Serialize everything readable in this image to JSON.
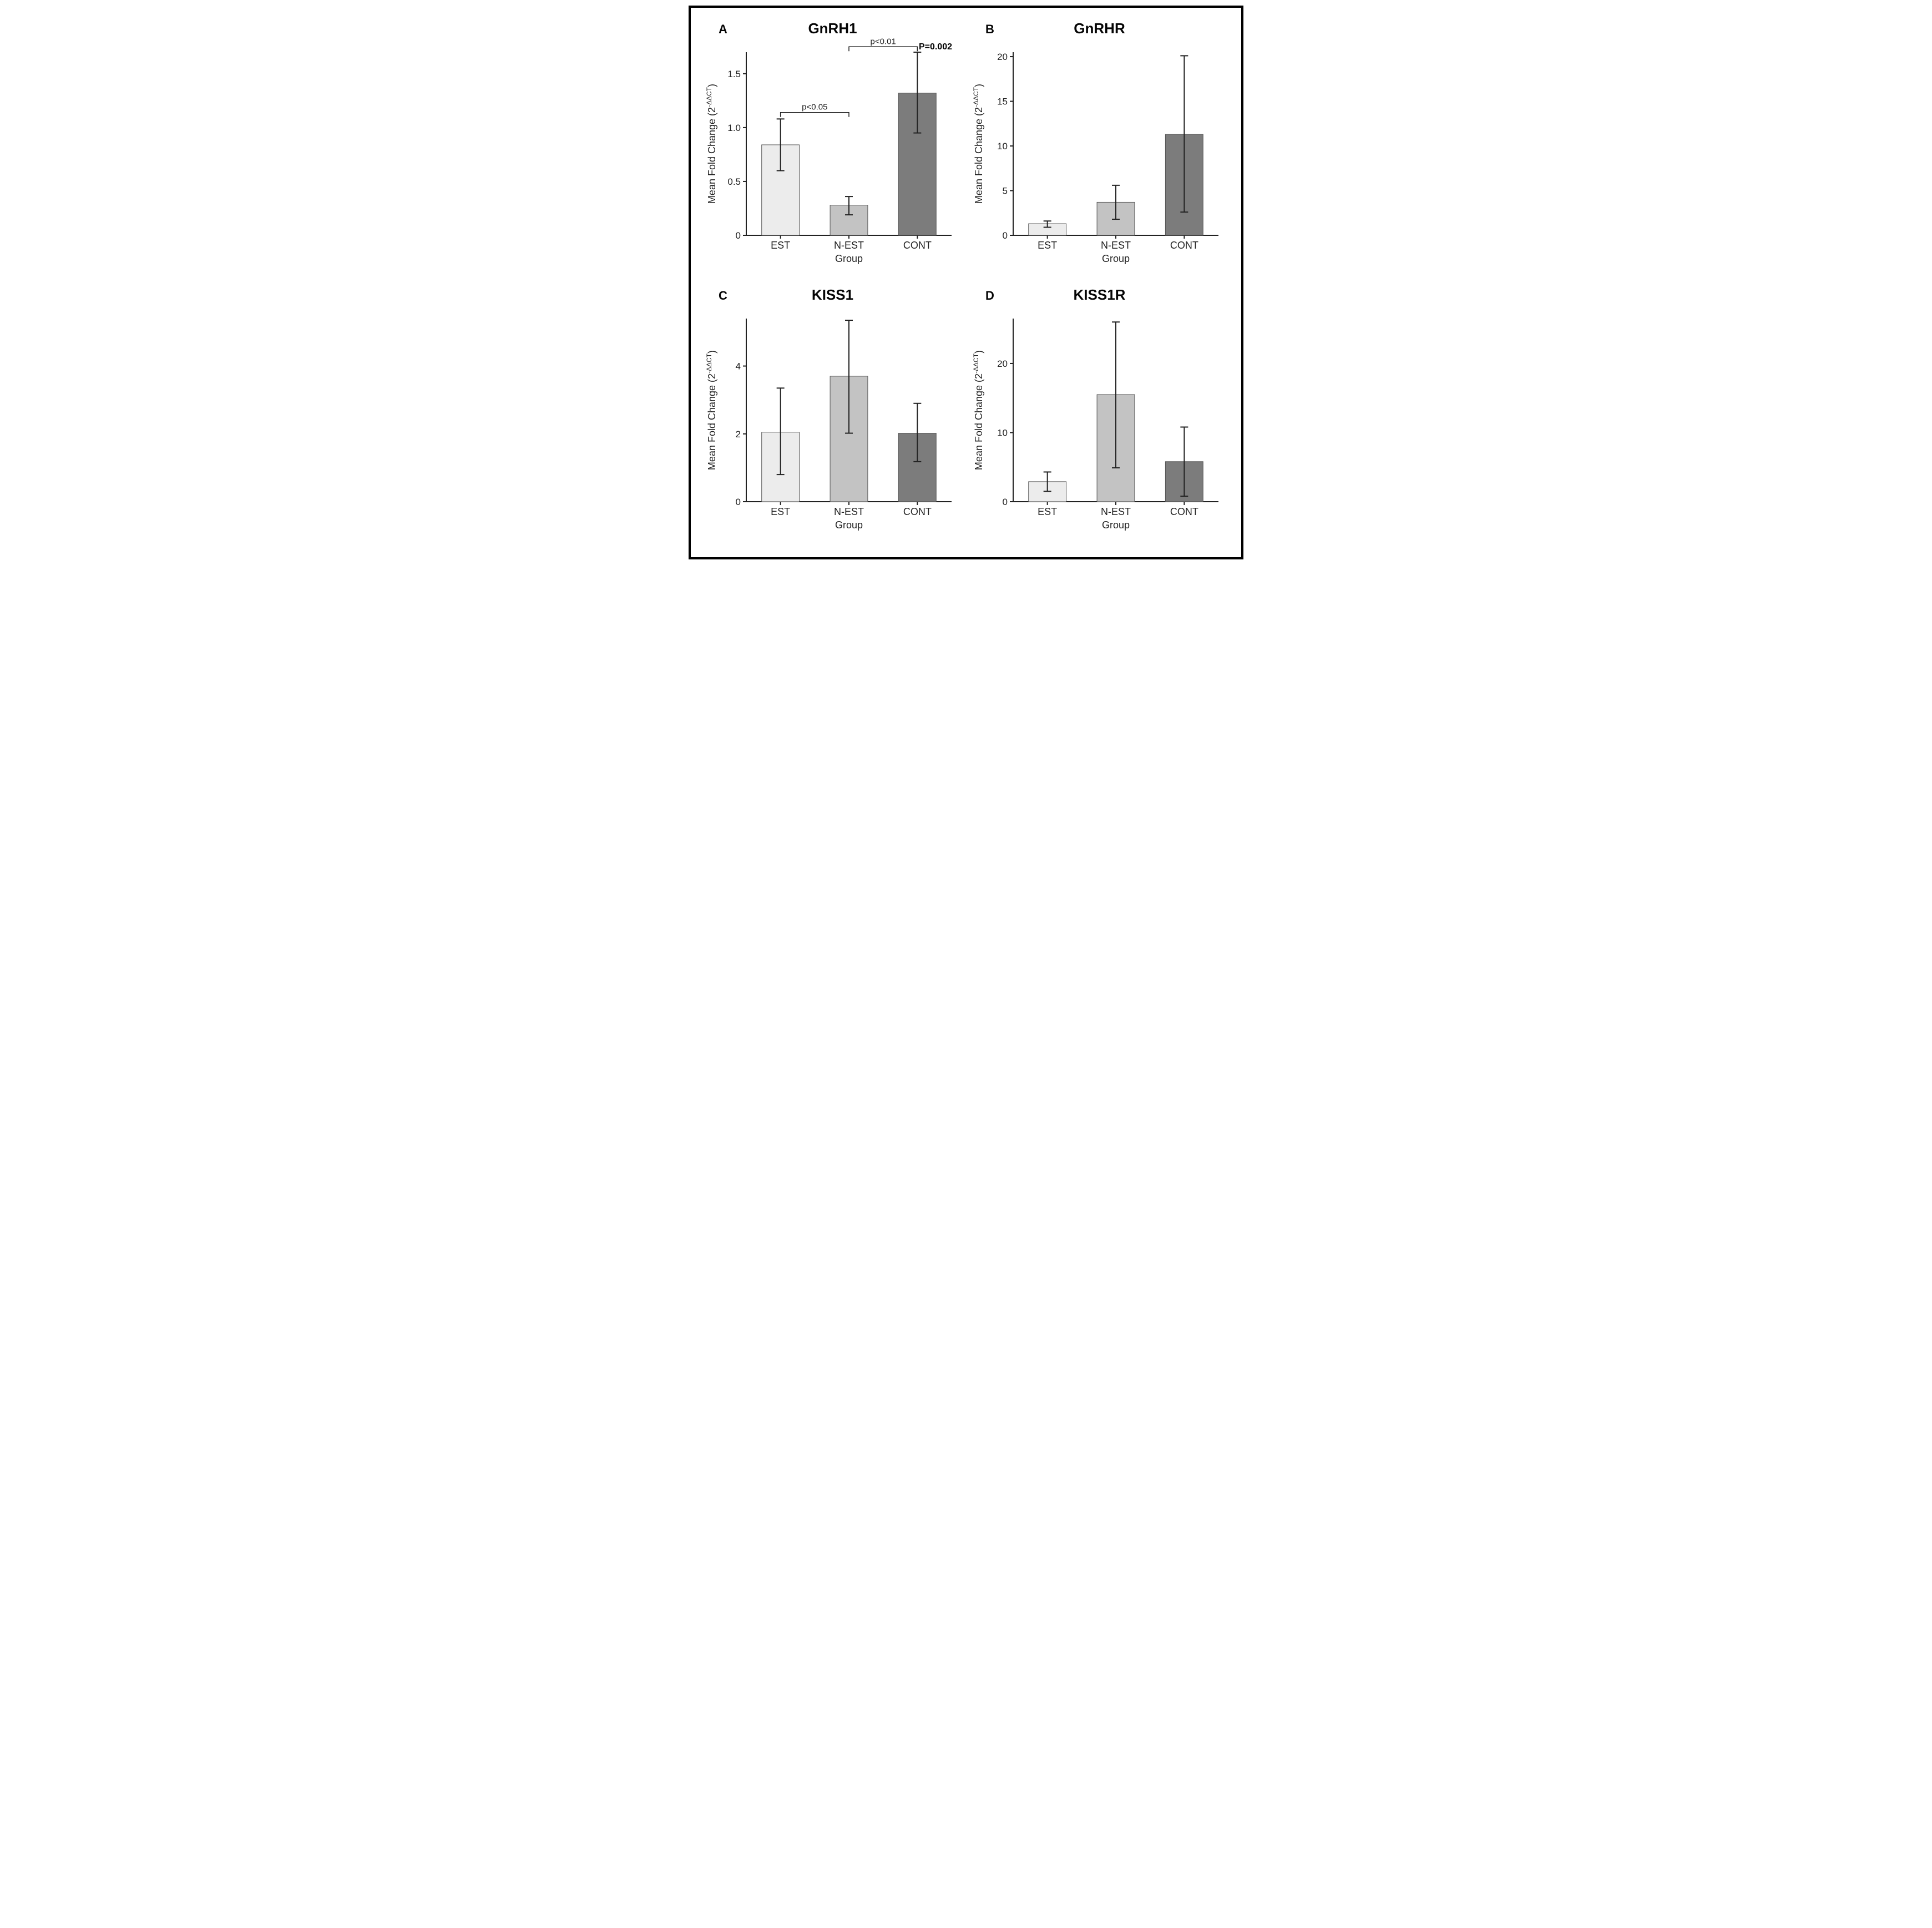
{
  "figure": {
    "border_color": "#000000",
    "background_color": "#ffffff"
  },
  "panels": {
    "A": {
      "letter": "A",
      "title": "GnRH1",
      "type": "bar",
      "xlabel": "Group",
      "ylabel": "Mean Fold Change (2^{-ΔΔCT})",
      "categories": [
        "EST",
        "N-EST",
        "CONT"
      ],
      "values": [
        0.84,
        0.28,
        1.32
      ],
      "err_low": [
        0.6,
        0.19,
        0.95
      ],
      "err_high": [
        1.08,
        0.36,
        1.7
      ],
      "bar_colors": [
        "#ececec",
        "#c3c3c3",
        "#7c7c7c"
      ],
      "bar_border": "#555555",
      "ylim": [
        0,
        1.7
      ],
      "yticks": [
        0,
        0.5,
        1.0,
        1.5
      ],
      "ytick_labels": [
        "0",
        "0.5",
        "1.0",
        "1.5"
      ],
      "bar_width": 0.55,
      "axis_color": "#222222",
      "text_color": "#222222",
      "title_fontsize": 26,
      "label_fontsize": 18,
      "tick_fontsize": 17,
      "error_cap_width": 14,
      "error_line_width": 2,
      "overall_p": "P=0.002",
      "significance": [
        {
          "from": 0,
          "to": 1,
          "label": "p<0.05",
          "y": 1.14
        },
        {
          "from": 1,
          "to": 2,
          "label": "p<0.01",
          "y": 1.75
        }
      ]
    },
    "B": {
      "letter": "B",
      "title": "GnRHR",
      "type": "bar",
      "xlabel": "Group",
      "ylabel": "Mean Fold Change (2^{-ΔΔCT})",
      "categories": [
        "EST",
        "N-EST",
        "CONT"
      ],
      "values": [
        1.3,
        3.7,
        11.3
      ],
      "err_low": [
        0.9,
        1.8,
        2.6
      ],
      "err_high": [
        1.6,
        5.6,
        20.1
      ],
      "bar_colors": [
        "#ececec",
        "#c3c3c3",
        "#7c7c7c"
      ],
      "bar_border": "#555555",
      "ylim": [
        0,
        20.5
      ],
      "yticks": [
        0,
        5,
        10,
        15,
        20
      ],
      "ytick_labels": [
        "0",
        "5",
        "10",
        "15",
        "20"
      ],
      "bar_width": 0.55,
      "axis_color": "#222222",
      "text_color": "#222222",
      "title_fontsize": 26,
      "label_fontsize": 18,
      "tick_fontsize": 17,
      "error_cap_width": 14,
      "error_line_width": 2
    },
    "C": {
      "letter": "C",
      "title": "KISS1",
      "type": "bar",
      "xlabel": "Group",
      "ylabel": "Mean Fold Change (2^{-ΔΔCT})",
      "categories": [
        "EST",
        "N-EST",
        "CONT"
      ],
      "values": [
        2.05,
        3.7,
        2.02
      ],
      "err_low": [
        0.8,
        2.02,
        1.18
      ],
      "err_high": [
        3.35,
        5.35,
        2.9
      ],
      "bar_colors": [
        "#ececec",
        "#c3c3c3",
        "#7c7c7c"
      ],
      "bar_border": "#555555",
      "ylim": [
        0,
        5.4
      ],
      "yticks": [
        0,
        2,
        4
      ],
      "ytick_labels": [
        "0",
        "2",
        "4"
      ],
      "bar_width": 0.55,
      "axis_color": "#222222",
      "text_color": "#222222",
      "title_fontsize": 26,
      "label_fontsize": 18,
      "tick_fontsize": 17,
      "error_cap_width": 14,
      "error_line_width": 2
    },
    "D": {
      "letter": "D",
      "title": "KISS1R",
      "type": "bar",
      "xlabel": "Group",
      "ylabel": "Mean Fold Change (2^{-ΔΔCT})",
      "categories": [
        "EST",
        "N-EST",
        "CONT"
      ],
      "values": [
        2.9,
        15.5,
        5.8
      ],
      "err_low": [
        1.5,
        4.9,
        0.8
      ],
      "err_high": [
        4.3,
        26.0,
        10.8
      ],
      "bar_colors": [
        "#ececec",
        "#c3c3c3",
        "#7c7c7c"
      ],
      "bar_border": "#555555",
      "ylim": [
        0,
        26.5
      ],
      "yticks": [
        0,
        10,
        20
      ],
      "ytick_labels": [
        "0",
        "10",
        "20"
      ],
      "bar_width": 0.55,
      "axis_color": "#222222",
      "text_color": "#222222",
      "title_fontsize": 26,
      "label_fontsize": 18,
      "tick_fontsize": 17,
      "error_cap_width": 14,
      "error_line_width": 2
    }
  }
}
